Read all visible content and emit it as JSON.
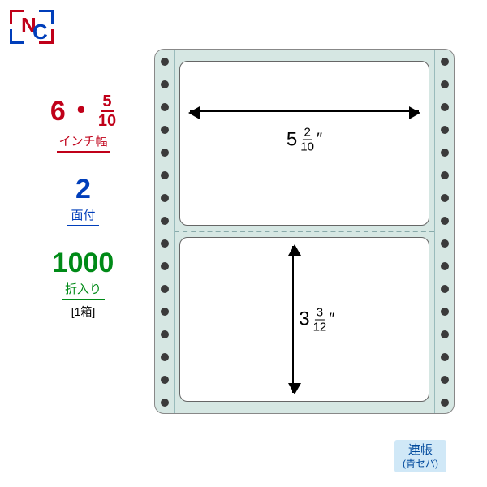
{
  "logo": {
    "text_n": "N",
    "text_c": "C",
    "color_n": "#c00019",
    "color_c": "#003eba"
  },
  "specs": {
    "width": {
      "whole": "6",
      "sep": "・",
      "frac_num": "5",
      "frac_den": "10",
      "label": "インチ幅",
      "color": "#c00019"
    },
    "faces": {
      "value": "2",
      "label": "面付",
      "color": "#003eba"
    },
    "folds": {
      "value": "1000",
      "label": "折入り",
      "extra": "[1箱]",
      "color": "#008a17"
    }
  },
  "diagram": {
    "background": "#d6e7e3",
    "hole_count_per_strip": 16,
    "hole_color": "#3b3b3b",
    "panel_width": {
      "whole": "5",
      "frac_num": "2",
      "frac_den": "10",
      "inch": "″"
    },
    "panel_height": {
      "whole": "3",
      "frac_num": "3",
      "frac_den": "12",
      "inch": "″"
    }
  },
  "tag": {
    "line1": "連帳",
    "line2": "(青セパ)",
    "bg": "#d0e8f7",
    "fg": "#00499c"
  }
}
